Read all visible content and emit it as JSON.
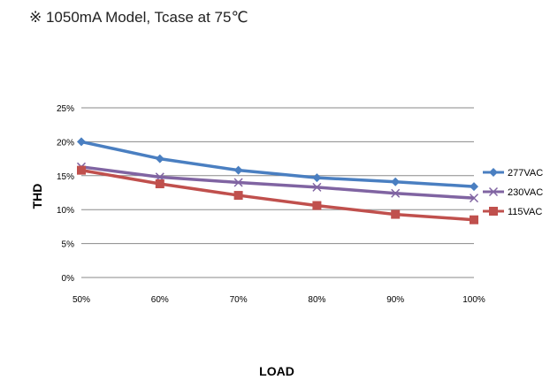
{
  "note": "※ 1050mA Model, Tcase at 75℃",
  "chart_data": {
    "type": "line",
    "title": "",
    "xlabel": "LOAD",
    "ylabel": "THD",
    "categories": [
      "50%",
      "60%",
      "70%",
      "80%",
      "90%",
      "100%"
    ],
    "y_ticks": [
      "0%",
      "5%",
      "10%",
      "15%",
      "20%",
      "25%"
    ],
    "ylim": [
      0,
      25
    ],
    "grid": true,
    "legend_position": "right",
    "series": [
      {
        "name": "277VAC",
        "values": [
          20.0,
          17.5,
          15.8,
          14.7,
          14.1,
          13.4
        ],
        "color": "#4a7fc1",
        "marker": "diamond"
      },
      {
        "name": "230VAC",
        "values": [
          16.3,
          14.8,
          14.0,
          13.3,
          12.4,
          11.7
        ],
        "color": "#8064a2",
        "marker": "x"
      },
      {
        "name": "115VAC",
        "values": [
          15.8,
          13.8,
          12.1,
          10.6,
          9.3,
          8.5
        ],
        "color": "#c0504d",
        "marker": "square"
      }
    ]
  }
}
